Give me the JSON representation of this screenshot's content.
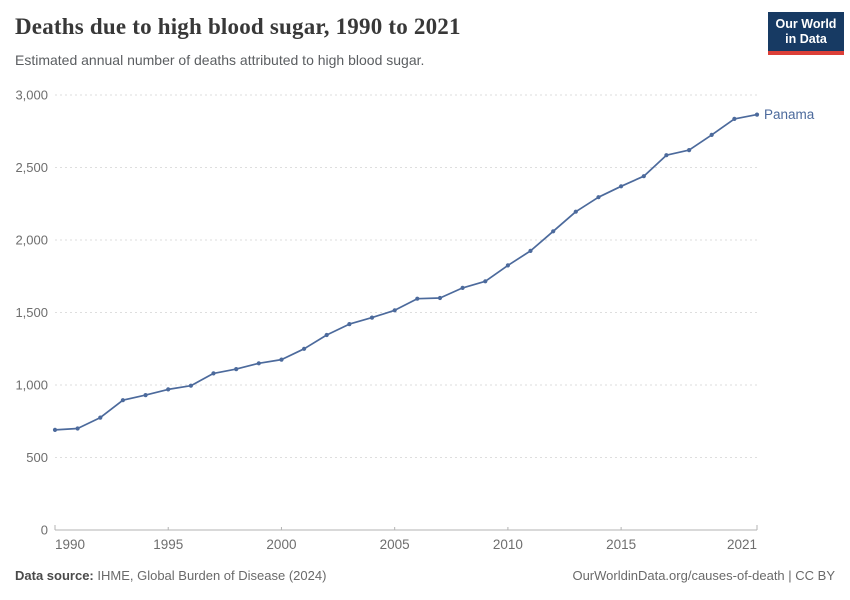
{
  "header": {
    "title": "Deaths due to high blood sugar, 1990 to 2021",
    "subtitle": "Estimated annual number of deaths attributed to high blood sugar."
  },
  "logo": {
    "line1": "Our World",
    "line2": "in Data",
    "bg_color": "#173a63",
    "accent_color": "#dc3f38"
  },
  "chart_data": {
    "type": "line",
    "title": "Deaths due to high blood sugar, 1990 to 2021",
    "subtitle": "Estimated annual number of deaths attributed to high blood sugar.",
    "x": [
      1990,
      1991,
      1992,
      1993,
      1994,
      1995,
      1996,
      1997,
      1998,
      1999,
      2000,
      2001,
      2002,
      2003,
      2004,
      2005,
      2006,
      2007,
      2008,
      2009,
      2010,
      2011,
      2012,
      2013,
      2014,
      2015,
      2016,
      2017,
      2018,
      2019,
      2020,
      2021
    ],
    "series": [
      {
        "name": "Panama",
        "color": "#4c6a9c",
        "values": [
          690,
          700,
          775,
          895,
          930,
          970,
          995,
          1080,
          1110,
          1150,
          1175,
          1250,
          1345,
          1420,
          1465,
          1515,
          1595,
          1600,
          1670,
          1715,
          1825,
          1925,
          2060,
          2195,
          2295,
          2370,
          2440,
          2585,
          2620,
          2725,
          2835,
          2865
        ]
      }
    ],
    "xlabel": "",
    "ylabel": "",
    "xlim": [
      1990,
      2021
    ],
    "ylim": [
      0,
      3000
    ],
    "yticks": [
      {
        "value": 0,
        "label": "0"
      },
      {
        "value": 500,
        "label": "500"
      },
      {
        "value": 1000,
        "label": "1,000"
      },
      {
        "value": 1500,
        "label": "1,500"
      },
      {
        "value": 2000,
        "label": "2,000"
      },
      {
        "value": 2500,
        "label": "2,500"
      },
      {
        "value": 3000,
        "label": "3,000"
      }
    ],
    "xticks": [
      {
        "value": 1990,
        "label": "1990"
      },
      {
        "value": 1995,
        "label": "1995"
      },
      {
        "value": 2000,
        "label": "2000"
      },
      {
        "value": 2005,
        "label": "2005"
      },
      {
        "value": 2010,
        "label": "2010"
      },
      {
        "value": 2015,
        "label": "2015"
      },
      {
        "value": 2021,
        "label": "2021"
      }
    ],
    "grid": "horizontal-dashed",
    "legend": "end-of-line-label"
  },
  "footer": {
    "source_label": "Data source:",
    "source_text": " IHME, Global Burden of Disease (2024)",
    "credit": "OurWorldinData.org/causes-of-death | CC BY"
  }
}
